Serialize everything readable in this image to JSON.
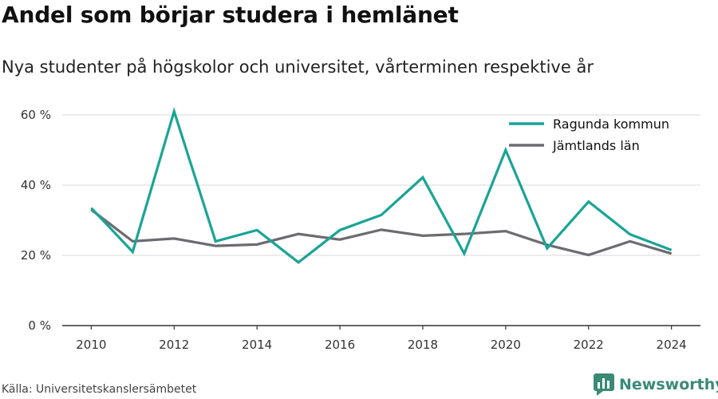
{
  "title": "Andel som börjar studera i hemlänet",
  "subtitle": "Nya studenter på högskolor och universitet, vårterminen respektive år",
  "source": "Källa: Universitetskanslersämbetet",
  "brand": "Newsworthy",
  "colors": {
    "ragunda": "#1aa496",
    "jamtland": "#6d6b70",
    "grid": "#d9d9d9",
    "axis": "#333333",
    "brand": "#3a8a76"
  },
  "chart_data": {
    "type": "line",
    "x": [
      2010,
      2011,
      2012,
      2013,
      2014,
      2015,
      2016,
      2017,
      2018,
      2019,
      2020,
      2021,
      2022,
      2023,
      2024
    ],
    "series": [
      {
        "name": "Ragunda kommun",
        "color": "#1aa496",
        "values": [
          33.5,
          21,
          61,
          24,
          27.2,
          18,
          27.2,
          31.5,
          42.2,
          20.5,
          50,
          22,
          35.3,
          26,
          21.5
        ]
      },
      {
        "name": "Jämtlands län",
        "color": "#6d6b70",
        "values": [
          33,
          24,
          24.8,
          22.7,
          23.1,
          26.1,
          24.5,
          27.3,
          25.6,
          26.1,
          26.9,
          23,
          20.1,
          24,
          20.5
        ]
      }
    ],
    "yticks": [
      "0 %",
      "20 %",
      "40 %",
      "60 %"
    ],
    "ytick_values": [
      0,
      20,
      40,
      60
    ],
    "xticks": [
      "2010",
      "2012",
      "2014",
      "2016",
      "2018",
      "2020",
      "2022",
      "2024"
    ],
    "xtick_values": [
      2010,
      2012,
      2014,
      2016,
      2018,
      2020,
      2022,
      2024
    ],
    "ylim": [
      0,
      65
    ],
    "xlim": [
      2009.3,
      2024.7
    ],
    "grid": true,
    "legend_position": "top-right"
  }
}
